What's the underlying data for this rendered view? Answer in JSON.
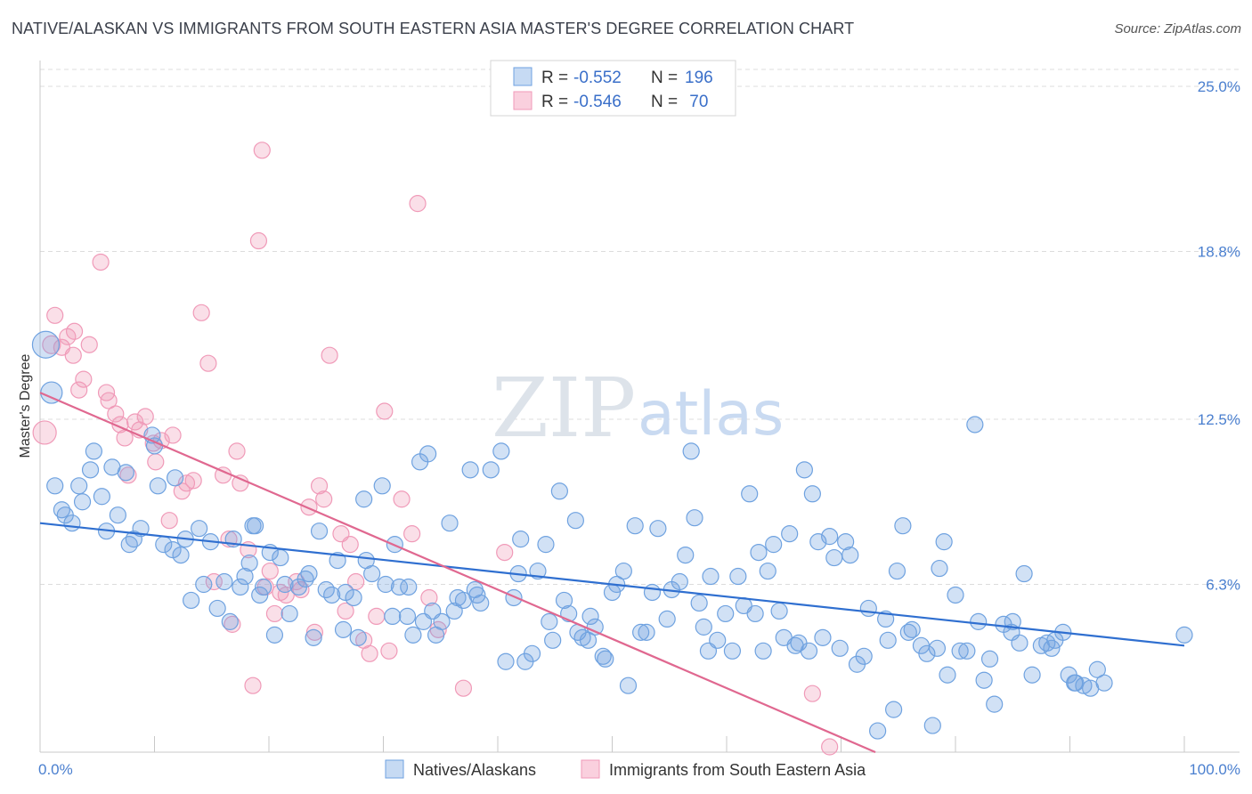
{
  "title": "NATIVE/ALASKAN VS IMMIGRANTS FROM SOUTH EASTERN ASIA MASTER'S DEGREE CORRELATION CHART",
  "source": "Source: ZipAtlas.com",
  "watermark": {
    "part1": "ZIP",
    "part2": "atlas"
  },
  "chart_data": {
    "type": "scatter",
    "title": "NATIVE/ALASKAN VS IMMIGRANTS FROM SOUTH EASTERN ASIA MASTER'S DEGREE CORRELATION CHART",
    "xlabel": "",
    "ylabel": "Master's Degree",
    "xlim": [
      0,
      100
    ],
    "ylim": [
      0,
      25
    ],
    "x_ticks": [
      "0.0%",
      "100.0%"
    ],
    "y_ticks": [
      "6.3%",
      "12.5%",
      "18.8%",
      "25.0%"
    ],
    "y_tick_values": [
      6.3,
      12.5,
      18.8,
      25.0
    ],
    "grid": "horizontal dashed",
    "legend": "top-center",
    "colors": {
      "blue": "#6fa2e0",
      "pink": "#f09ab8",
      "blue_line": "#2f6fd0",
      "pink_line": "#e06890"
    },
    "stats": [
      {
        "r_label": "R = ",
        "r": "-0.552",
        "n_label": "N = ",
        "n": "196"
      },
      {
        "r_label": "R = ",
        "r": "-0.546",
        "n_label": "N = ",
        "n": " 70"
      }
    ],
    "series": [
      {
        "name": "Natives/Alaskans",
        "color": "#6fa2e0",
        "trend": {
          "x": [
            0,
            100
          ],
          "y": [
            8.6,
            4.0
          ]
        },
        "points": [
          [
            0.5,
            15.3
          ],
          [
            1.0,
            13.5
          ],
          [
            1.3,
            10.0
          ],
          [
            1.9,
            9.1
          ],
          [
            2.2,
            8.9
          ],
          [
            2.8,
            8.6
          ],
          [
            3.4,
            10.0
          ],
          [
            3.7,
            9.4
          ],
          [
            4.4,
            10.6
          ],
          [
            4.7,
            11.3
          ],
          [
            5.4,
            9.6
          ],
          [
            5.8,
            8.3
          ],
          [
            6.3,
            10.7
          ],
          [
            6.8,
            8.9
          ],
          [
            7.5,
            10.5
          ],
          [
            7.8,
            7.8
          ],
          [
            8.2,
            8.0
          ],
          [
            8.8,
            8.4
          ],
          [
            9.8,
            11.9
          ],
          [
            10.0,
            11.5
          ],
          [
            10.3,
            10.0
          ],
          [
            10.8,
            7.8
          ],
          [
            11.6,
            7.6
          ],
          [
            11.8,
            10.3
          ],
          [
            12.3,
            7.4
          ],
          [
            12.7,
            8.0
          ],
          [
            13.2,
            5.7
          ],
          [
            13.9,
            8.4
          ],
          [
            14.3,
            6.3
          ],
          [
            14.9,
            7.9
          ],
          [
            15.5,
            5.4
          ],
          [
            16.1,
            6.4
          ],
          [
            16.6,
            4.9
          ],
          [
            16.9,
            8.0
          ],
          [
            17.5,
            6.2
          ],
          [
            17.9,
            6.6
          ],
          [
            18.3,
            7.1
          ],
          [
            18.6,
            8.5
          ],
          [
            18.8,
            8.5
          ],
          [
            19.2,
            5.9
          ],
          [
            19.5,
            6.2
          ],
          [
            20.1,
            7.5
          ],
          [
            20.5,
            4.4
          ],
          [
            21.0,
            7.3
          ],
          [
            21.4,
            6.3
          ],
          [
            21.8,
            5.2
          ],
          [
            22.6,
            6.2
          ],
          [
            23.2,
            6.5
          ],
          [
            23.5,
            6.7
          ],
          [
            23.9,
            4.3
          ],
          [
            24.4,
            8.3
          ],
          [
            25.0,
            6.1
          ],
          [
            25.5,
            5.9
          ],
          [
            26.0,
            7.2
          ],
          [
            26.5,
            4.6
          ],
          [
            26.7,
            6.0
          ],
          [
            27.4,
            5.8
          ],
          [
            27.8,
            4.3
          ],
          [
            28.3,
            9.5
          ],
          [
            28.5,
            7.2
          ],
          [
            29.0,
            6.7
          ],
          [
            29.9,
            10.0
          ],
          [
            30.2,
            6.3
          ],
          [
            30.8,
            5.1
          ],
          [
            31.0,
            7.8
          ],
          [
            31.4,
            6.2
          ],
          [
            32.1,
            5.1
          ],
          [
            32.2,
            6.2
          ],
          [
            32.6,
            4.4
          ],
          [
            33.2,
            10.9
          ],
          [
            33.5,
            4.9
          ],
          [
            33.9,
            11.2
          ],
          [
            34.3,
            5.3
          ],
          [
            34.6,
            4.4
          ],
          [
            35.1,
            4.9
          ],
          [
            35.8,
            8.6
          ],
          [
            36.2,
            5.3
          ],
          [
            36.5,
            5.8
          ],
          [
            37.0,
            5.7
          ],
          [
            37.6,
            10.6
          ],
          [
            38.0,
            6.1
          ],
          [
            38.2,
            5.9
          ],
          [
            38.5,
            5.6
          ],
          [
            39.4,
            10.6
          ],
          [
            40.3,
            11.3
          ],
          [
            40.7,
            3.4
          ],
          [
            41.4,
            5.8
          ],
          [
            41.8,
            6.7
          ],
          [
            42.0,
            8.0
          ],
          [
            42.4,
            3.4
          ],
          [
            43.0,
            3.7
          ],
          [
            43.5,
            6.8
          ],
          [
            44.2,
            7.8
          ],
          [
            44.5,
            4.9
          ],
          [
            44.8,
            4.2
          ],
          [
            45.4,
            9.8
          ],
          [
            45.8,
            5.7
          ],
          [
            46.2,
            5.2
          ],
          [
            46.8,
            8.7
          ],
          [
            47.0,
            4.5
          ],
          [
            47.4,
            4.3
          ],
          [
            47.9,
            4.2
          ],
          [
            48.1,
            5.1
          ],
          [
            48.5,
            4.7
          ],
          [
            49.2,
            3.6
          ],
          [
            49.4,
            3.5
          ],
          [
            50.0,
            6.0
          ],
          [
            50.4,
            6.3
          ],
          [
            51.0,
            6.8
          ],
          [
            51.4,
            2.5
          ],
          [
            52.0,
            8.5
          ],
          [
            52.5,
            4.5
          ],
          [
            53.0,
            4.5
          ],
          [
            53.5,
            6.0
          ],
          [
            54.0,
            8.4
          ],
          [
            54.8,
            5.0
          ],
          [
            55.2,
            6.1
          ],
          [
            55.9,
            6.4
          ],
          [
            56.4,
            7.4
          ],
          [
            56.9,
            11.3
          ],
          [
            57.2,
            8.8
          ],
          [
            57.6,
            5.6
          ],
          [
            58.0,
            4.7
          ],
          [
            58.4,
            3.8
          ],
          [
            58.6,
            6.6
          ],
          [
            59.2,
            4.2
          ],
          [
            59.9,
            5.2
          ],
          [
            60.5,
            3.8
          ],
          [
            61.0,
            6.6
          ],
          [
            61.5,
            5.5
          ],
          [
            62.0,
            9.7
          ],
          [
            62.5,
            5.2
          ],
          [
            62.8,
            7.5
          ],
          [
            63.2,
            3.8
          ],
          [
            63.6,
            6.8
          ],
          [
            64.1,
            7.8
          ],
          [
            64.6,
            5.3
          ],
          [
            65.0,
            4.3
          ],
          [
            65.5,
            8.2
          ],
          [
            66.0,
            4.0
          ],
          [
            66.3,
            4.1
          ],
          [
            66.8,
            10.6
          ],
          [
            67.2,
            3.8
          ],
          [
            67.5,
            9.7
          ],
          [
            68.0,
            7.9
          ],
          [
            68.4,
            4.3
          ],
          [
            69.0,
            8.1
          ],
          [
            69.4,
            7.3
          ],
          [
            69.9,
            3.9
          ],
          [
            70.4,
            7.9
          ],
          [
            70.8,
            7.4
          ],
          [
            71.4,
            3.3
          ],
          [
            72.0,
            3.6
          ],
          [
            72.4,
            5.4
          ],
          [
            73.2,
            0.8
          ],
          [
            73.9,
            5.0
          ],
          [
            74.1,
            4.2
          ],
          [
            74.6,
            1.6
          ],
          [
            74.9,
            6.8
          ],
          [
            75.4,
            8.5
          ],
          [
            75.9,
            4.5
          ],
          [
            76.2,
            4.6
          ],
          [
            77.0,
            4.0
          ],
          [
            77.5,
            3.7
          ],
          [
            78.0,
            1.0
          ],
          [
            78.4,
            3.9
          ],
          [
            78.6,
            6.9
          ],
          [
            79.0,
            7.9
          ],
          [
            79.3,
            2.9
          ],
          [
            80.0,
            5.9
          ],
          [
            80.4,
            3.8
          ],
          [
            81.0,
            3.8
          ],
          [
            81.7,
            12.3
          ],
          [
            82.0,
            4.9
          ],
          [
            82.5,
            2.7
          ],
          [
            83.0,
            3.5
          ],
          [
            83.4,
            1.8
          ],
          [
            84.2,
            4.8
          ],
          [
            84.9,
            4.5
          ],
          [
            85.0,
            4.9
          ],
          [
            85.6,
            4.1
          ],
          [
            86.0,
            6.7
          ],
          [
            86.7,
            2.9
          ],
          [
            87.5,
            4.0
          ],
          [
            88.0,
            4.1
          ],
          [
            88.4,
            3.9
          ],
          [
            88.7,
            4.2
          ],
          [
            89.4,
            4.5
          ],
          [
            89.9,
            2.9
          ],
          [
            90.4,
            2.6
          ],
          [
            90.5,
            2.6
          ],
          [
            91.2,
            2.5
          ],
          [
            91.8,
            2.4
          ],
          [
            92.4,
            3.1
          ],
          [
            93.0,
            2.6
          ],
          [
            100.0,
            4.4
          ]
        ]
      },
      {
        "name": "Immigrants from South Eastern Asia",
        "color": "#f09ab8",
        "trend": {
          "x": [
            0,
            73
          ],
          "y": [
            13.5,
            0.0
          ]
        },
        "points": [
          [
            0.4,
            12.0
          ],
          [
            1.0,
            15.3
          ],
          [
            1.3,
            16.4
          ],
          [
            1.9,
            15.2
          ],
          [
            2.4,
            15.6
          ],
          [
            2.9,
            14.9
          ],
          [
            3.0,
            15.8
          ],
          [
            3.4,
            13.6
          ],
          [
            3.8,
            14.0
          ],
          [
            4.3,
            15.3
          ],
          [
            5.3,
            18.4
          ],
          [
            5.8,
            13.5
          ],
          [
            6.0,
            13.2
          ],
          [
            6.6,
            12.7
          ],
          [
            7.0,
            12.3
          ],
          [
            7.4,
            11.8
          ],
          [
            7.7,
            10.4
          ],
          [
            8.3,
            12.4
          ],
          [
            8.7,
            12.1
          ],
          [
            9.2,
            12.6
          ],
          [
            9.9,
            11.6
          ],
          [
            10.1,
            10.9
          ],
          [
            10.6,
            11.7
          ],
          [
            11.3,
            8.7
          ],
          [
            11.6,
            11.9
          ],
          [
            12.4,
            9.8
          ],
          [
            12.8,
            10.1
          ],
          [
            13.4,
            10.2
          ],
          [
            14.1,
            16.5
          ],
          [
            14.7,
            14.6
          ],
          [
            15.2,
            6.4
          ],
          [
            16.0,
            10.4
          ],
          [
            16.5,
            8.0
          ],
          [
            16.8,
            4.8
          ],
          [
            17.2,
            11.3
          ],
          [
            17.5,
            10.1
          ],
          [
            18.2,
            7.6
          ],
          [
            18.6,
            2.5
          ],
          [
            19.1,
            19.2
          ],
          [
            19.4,
            22.6
          ],
          [
            19.7,
            6.2
          ],
          [
            20.1,
            6.8
          ],
          [
            20.5,
            5.2
          ],
          [
            21.0,
            6.0
          ],
          [
            21.5,
            5.9
          ],
          [
            22.4,
            6.4
          ],
          [
            22.8,
            6.1
          ],
          [
            23.5,
            9.2
          ],
          [
            24.0,
            4.5
          ],
          [
            24.4,
            10.0
          ],
          [
            24.8,
            9.5
          ],
          [
            25.3,
            14.9
          ],
          [
            26.3,
            8.2
          ],
          [
            26.7,
            5.3
          ],
          [
            27.1,
            7.8
          ],
          [
            27.6,
            6.4
          ],
          [
            28.3,
            4.2
          ],
          [
            28.8,
            3.7
          ],
          [
            29.4,
            5.1
          ],
          [
            30.1,
            12.8
          ],
          [
            30.5,
            3.8
          ],
          [
            31.6,
            9.5
          ],
          [
            32.5,
            8.2
          ],
          [
            33.0,
            20.6
          ],
          [
            34.0,
            5.8
          ],
          [
            34.8,
            4.6
          ],
          [
            37.0,
            2.4
          ],
          [
            40.6,
            7.5
          ],
          [
            67.5,
            2.2
          ],
          [
            69.0,
            0.2
          ]
        ]
      }
    ]
  },
  "bottom_legend": [
    "Natives/Alaskans",
    "Immigrants from South Eastern Asia"
  ]
}
